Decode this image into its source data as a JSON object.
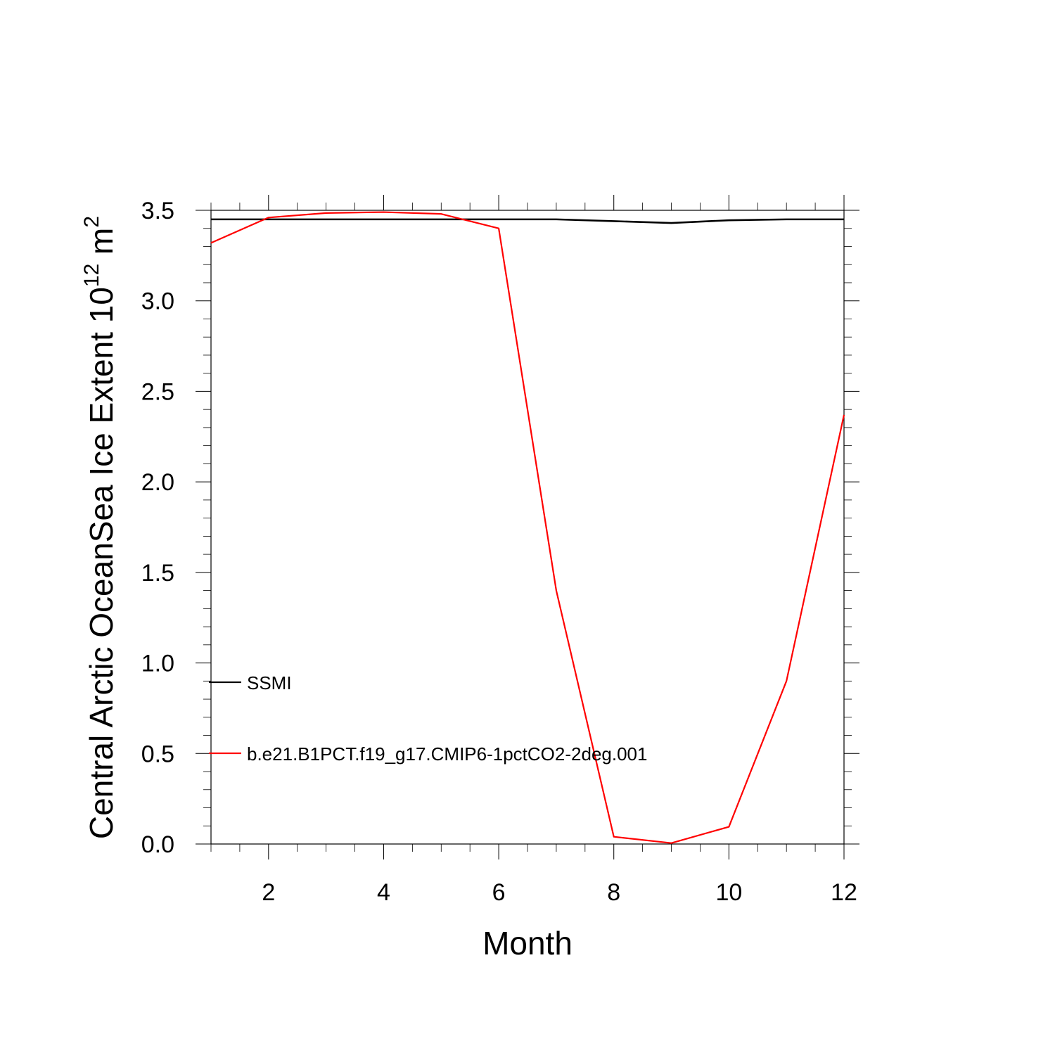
{
  "chart_data": {
    "type": "line",
    "xlabel": "Month",
    "ylabel": {
      "prefix": "Central Arctic OceanSea Ice Extent 10",
      "exp1": "12",
      "mid": " m",
      "exp2": "2"
    },
    "xlim": [
      1,
      12
    ],
    "ylim": [
      0,
      3.5
    ],
    "xticks": [
      2,
      4,
      6,
      8,
      10,
      12
    ],
    "xtick_labels": [
      "2",
      "4",
      "6",
      "8",
      "10",
      "12"
    ],
    "yticks": [
      0,
      0.5,
      1.0,
      1.5,
      2.0,
      2.5,
      3.0,
      3.5
    ],
    "ytick_labels": [
      "0.0",
      "0.5",
      "1.0",
      "1.5",
      "2.0",
      "2.5",
      "3.0",
      "3.5"
    ],
    "x": [
      1,
      2,
      3,
      4,
      5,
      6,
      7,
      8,
      9,
      10,
      11,
      12
    ],
    "series": [
      {
        "name": "SSMI",
        "color": "#000000",
        "values": [
          3.45,
          3.45,
          3.45,
          3.45,
          3.45,
          3.45,
          3.45,
          3.44,
          3.43,
          3.445,
          3.45,
          3.45
        ]
      },
      {
        "name": "b.e21.B1PCT.f19_g17.CMIP6-1pctCO2-2deg.001",
        "color": "#ff0000",
        "values": [
          3.32,
          3.46,
          3.485,
          3.49,
          3.48,
          3.4,
          1.4,
          0.04,
          0.005,
          0.095,
          0.9,
          2.37
        ]
      }
    ],
    "legend_position": "lower-left inside",
    "grid": false
  }
}
